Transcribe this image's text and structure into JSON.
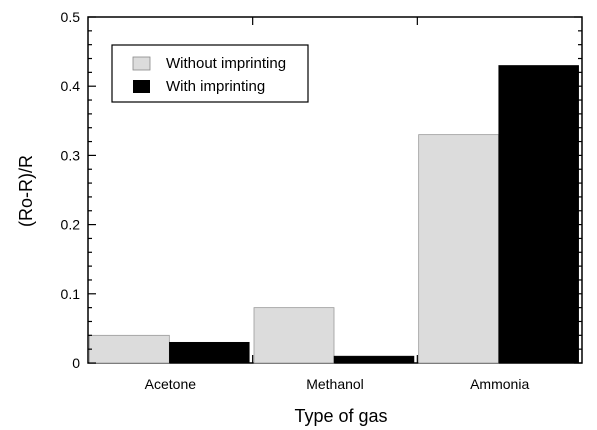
{
  "chart_data": {
    "type": "bar",
    "title": "",
    "xlabel": "Type of gas",
    "ylabel": "(Ro-R)/R",
    "categories": [
      "Acetone",
      "Methanol",
      "Ammonia"
    ],
    "ylim": [
      0,
      0.5
    ],
    "yticks": [
      "0",
      "0.1",
      "0.2",
      "0.3",
      "0.4",
      "0.5"
    ],
    "series": [
      {
        "name": "Without imprinting",
        "values": [
          0.04,
          0.08,
          0.33
        ],
        "color": "#dcdcdc"
      },
      {
        "name": "With imprinting",
        "values": [
          0.03,
          0.01,
          0.43
        ],
        "color": "#000000"
      }
    ],
    "legend_position": "top-left",
    "grid": false
  }
}
